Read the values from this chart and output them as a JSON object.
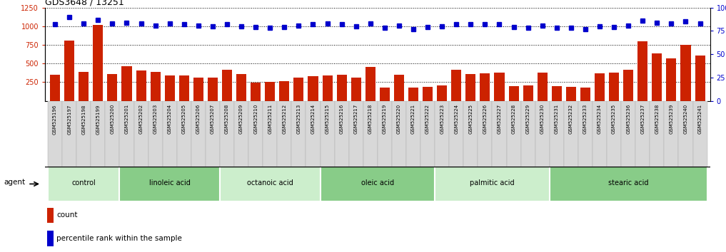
{
  "title": "GDS3648 / 13251",
  "samples": [
    "GSM525196",
    "GSM525197",
    "GSM525198",
    "GSM525199",
    "GSM525200",
    "GSM525201",
    "GSM525202",
    "GSM525203",
    "GSM525204",
    "GSM525205",
    "GSM525206",
    "GSM525207",
    "GSM525208",
    "GSM525209",
    "GSM525210",
    "GSM525211",
    "GSM525212",
    "GSM525213",
    "GSM525214",
    "GSM525215",
    "GSM525216",
    "GSM525217",
    "GSM525218",
    "GSM525219",
    "GSM525220",
    "GSM525221",
    "GSM525222",
    "GSM525223",
    "GSM525224",
    "GSM525225",
    "GSM525226",
    "GSM525227",
    "GSM525228",
    "GSM525229",
    "GSM525230",
    "GSM525231",
    "GSM525232",
    "GSM525233",
    "GSM525234",
    "GSM525235",
    "GSM525236",
    "GSM525237",
    "GSM525238",
    "GSM525239",
    "GSM525240",
    "GSM525241"
  ],
  "counts": [
    350,
    810,
    390,
    1020,
    355,
    465,
    405,
    385,
    340,
    335,
    310,
    315,
    415,
    355,
    245,
    255,
    265,
    315,
    330,
    340,
    350,
    315,
    455,
    180,
    345,
    175,
    190,
    205,
    415,
    360,
    365,
    375,
    200,
    205,
    375,
    195,
    190,
    180,
    370,
    380,
    415,
    800,
    640,
    570,
    750,
    610
  ],
  "percentile": [
    82,
    90,
    83,
    87,
    83,
    84,
    83,
    81,
    83,
    82,
    81,
    80,
    82,
    80,
    79,
    78,
    79,
    81,
    82,
    83,
    82,
    80,
    83,
    78,
    81,
    77,
    79,
    80,
    82,
    82,
    82,
    82,
    79,
    78,
    81,
    78,
    78,
    77,
    80,
    79,
    81,
    86,
    84,
    83,
    85,
    83
  ],
  "groups": [
    {
      "label": "control",
      "start": 0,
      "end": 4
    },
    {
      "label": "linoleic acid",
      "start": 5,
      "end": 11
    },
    {
      "label": "octanoic acid",
      "start": 12,
      "end": 18
    },
    {
      "label": "oleic acid",
      "start": 19,
      "end": 26
    },
    {
      "label": "palmitic acid",
      "start": 27,
      "end": 34
    },
    {
      "label": "stearic acid",
      "start": 35,
      "end": 45
    }
  ],
  "bar_color": "#cc2200",
  "dot_color": "#0000cc",
  "ylim_left": [
    0,
    1250
  ],
  "ylim_right": [
    0,
    100
  ],
  "yticks_left": [
    250,
    500,
    750,
    1000,
    1250
  ],
  "yticks_right": [
    0,
    25,
    50,
    75,
    100
  ],
  "grid_values": [
    250,
    500,
    750,
    1000,
    1250
  ],
  "title_fontsize": 9,
  "legend_label_count": "count",
  "legend_label_pct": "percentile rank within the sample",
  "agent_label": "agent",
  "group_colors": [
    "#cceecc",
    "#aaddaa",
    "#88cc88",
    "#77bb77",
    "#aaddaa",
    "#88cc88"
  ],
  "group_color_light": "#cceecc",
  "group_color_mid": "#99dd99",
  "group_color_dark": "#66cc66"
}
